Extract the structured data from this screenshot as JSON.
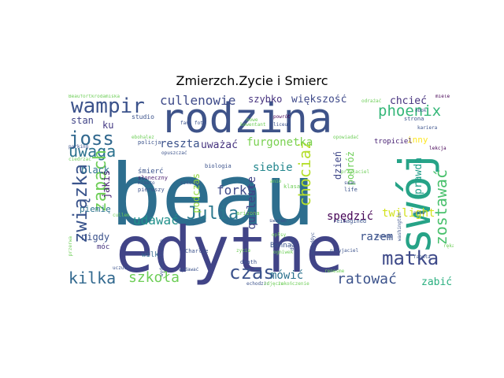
{
  "figure": {
    "title": "Zmierzch.Zycie i Smierc"
  },
  "words": [
    {
      "text": "beau",
      "color": "#2d6e8e"
    },
    {
      "text": "edythe",
      "color": "#414487"
    },
    {
      "text": "rodzina",
      "color": "#3e5389"
    },
    {
      "text": "swój",
      "color": "#26a387"
    },
    {
      "text": "wampir",
      "color": "#3b528b"
    },
    {
      "text": "joss",
      "color": "#31688e"
    },
    {
      "text": "uwaga",
      "color": "#2c728e"
    },
    {
      "text": "związka",
      "color": "#3a548c"
    },
    {
      "text": "zapach",
      "color": "#6ece58"
    },
    {
      "text": "Julia",
      "color": "#2a788e"
    },
    {
      "text": "cullenowie",
      "color": "#3e4a89"
    },
    {
      "text": "szybko",
      "color": "#46327e"
    },
    {
      "text": "większość",
      "color": "#3e4989"
    },
    {
      "text": "chcieć",
      "color": "#46327e"
    },
    {
      "text": "phoenix",
      "color": "#35b779"
    },
    {
      "text": "zostawać",
      "color": "#4ac16d"
    },
    {
      "text": "chociaż",
      "color": "#b5de2b"
    },
    {
      "text": "furgonetka",
      "color": "#7ad151"
    },
    {
      "text": "reszta",
      "color": "#3b528b"
    },
    {
      "text": "uważać",
      "color": "#46337f"
    },
    {
      "text": "siebie",
      "color": "#24878e"
    },
    {
      "text": "quileute",
      "color": "#414487"
    },
    {
      "text": "forks",
      "color": "#3e4a89"
    },
    {
      "text": "podczas",
      "color": "#95d840"
    },
    {
      "text": "dzień",
      "color": "#3f4788"
    },
    {
      "text": "podróż",
      "color": "#6ece58"
    },
    {
      "text": "inny",
      "color": "#fde725"
    },
    {
      "text": "tropiciel",
      "color": "#482173"
    },
    {
      "text": "prawda",
      "color": "#1f9e89"
    },
    {
      "text": "twilight",
      "color": "#d2e21b"
    },
    {
      "text": "spędzić",
      "color": "#440154"
    },
    {
      "text": "razem",
      "color": "#3b528b"
    },
    {
      "text": "matka",
      "color": "#3e4a89"
    },
    {
      "text": "ratować",
      "color": "#3b528b"
    },
    {
      "text": "zabić",
      "color": "#29af7f"
    },
    {
      "text": "kilka",
      "color": "#31688e"
    },
    {
      "text": "szkoła",
      "color": "#6ece58"
    },
    {
      "text": "czas",
      "color": "#3b528b"
    },
    {
      "text": "mówić",
      "color": "#2c728e"
    },
    {
      "text": "udawać",
      "color": "#21918c"
    },
    {
      "text": "black",
      "color": "#2c728e"
    },
    {
      "text": "jakiś",
      "color": "#482475"
    },
    {
      "text": "piemię",
      "color": "#2c728e"
    },
    {
      "text": "stan",
      "color": "#414487"
    },
    {
      "text": "ku",
      "color": "#443983"
    },
    {
      "text": "nigdy",
      "color": "#3b528b"
    },
    {
      "text": "móc",
      "color": "#46327e"
    },
    {
      "text": "wilk",
      "color": "#31688e"
    },
    {
      "text": "Bonna",
      "color": "#3b528b"
    },
    {
      "text": "śmierć",
      "color": "#3b528b"
    },
    {
      "text": "studio",
      "color": "#3b528b"
    },
    {
      "text": "słoneczny",
      "color": "#481a6c"
    },
    {
      "text": "biologia",
      "color": "#3b528b"
    },
    {
      "text": "pierwszy",
      "color": "#3b528b"
    },
    {
      "text": "klasa",
      "color": "#6ece58"
    },
    {
      "text": "Charlie",
      "color": "#3b528b"
    },
    {
      "text": "death",
      "color": "#3b528b"
    },
    {
      "text": "swanem",
      "color": "#3b528b"
    },
    {
      "text": "reimagined",
      "color": "#3b528b"
    },
    {
      "text": "life",
      "color": "#3b528b"
    },
    {
      "text": "policja",
      "color": "#3b528b"
    },
    {
      "text": "opuszczać",
      "color": "#3b528b"
    },
    {
      "text": "miasto",
      "color": "#3b528b"
    },
    {
      "text": "Beaufortkrodamiska",
      "color": "#6ece58"
    },
    {
      "text": "przyjaciel",
      "color": "#6ece58"
    },
    {
      "text": "miele",
      "color": "#440154"
    },
    {
      "text": "fabuła",
      "color": "#3b528b"
    },
    {
      "text": "ręka",
      "color": "#6ece58"
    },
    {
      "text": "pramie",
      "color": "#3b528b"
    },
    {
      "text": "lekcja",
      "color": "#440154"
    },
    {
      "text": "arizona",
      "color": "#6ece58"
    },
    {
      "text": "cullen",
      "color": "#6ece58"
    },
    {
      "text": "parking",
      "color": "#3b528b"
    },
    {
      "text": "echodzic",
      "color": "#3b528b"
    },
    {
      "text": "uczucie",
      "color": "#3b528b"
    },
    {
      "text": "strona",
      "color": "#3b528b"
    },
    {
      "text": "kariera",
      "color": "#3b528b"
    },
    {
      "text": "obok",
      "color": "#3b528b"
    },
    {
      "text": "noma",
      "color": "#3b528b"
    },
    {
      "text": "fan",
      "color": "#3b528b"
    },
    {
      "text": "szkolny",
      "color": "#3b528b"
    },
    {
      "text": "powrót",
      "color": "#440154"
    },
    {
      "text": "liceum",
      "color": "#3b528b"
    },
    {
      "text": "swan",
      "color": "#3b528b"
    },
    {
      "text": "zycie",
      "color": "#6ece58"
    },
    {
      "text": "wydobuchiemie",
      "color": "#3b528b"
    },
    {
      "text": "zeladdyc",
      "color": "#3b528b"
    },
    {
      "text": "dwyer",
      "color": "#3b528b"
    },
    {
      "text": "renesme",
      "color": "#6ece58"
    },
    {
      "text": "ebohalez",
      "color": "#6ece58"
    },
    {
      "text": "ogniwek",
      "color": "#6ece58"
    },
    {
      "text": "opowiadać",
      "color": "#6ece58"
    },
    {
      "text": "odrażać",
      "color": "#6ece58"
    },
    {
      "text": "wydawać",
      "color": "#3b528b"
    },
    {
      "text": "kowentant",
      "color": "#6ece58"
    },
    {
      "text": "opłsy",
      "color": "#6ece58"
    },
    {
      "text": "przyjaciel",
      "color": "#3b528b"
    },
    {
      "text": "ciedrzać",
      "color": "#6ece58"
    },
    {
      "text": "washington",
      "color": "#3b528b"
    },
    {
      "text": "zdjęcie",
      "color": "#6ece58"
    },
    {
      "text": "foto",
      "color": "#3b528b"
    },
    {
      "text": "anio",
      "color": "#6ece58"
    },
    {
      "text": "przerwa",
      "color": "#6ece58"
    },
    {
      "text": "zakończenie",
      "color": "#6ece58"
    },
    {
      "text": "nowe",
      "color": "#6ece58"
    }
  ]
}
